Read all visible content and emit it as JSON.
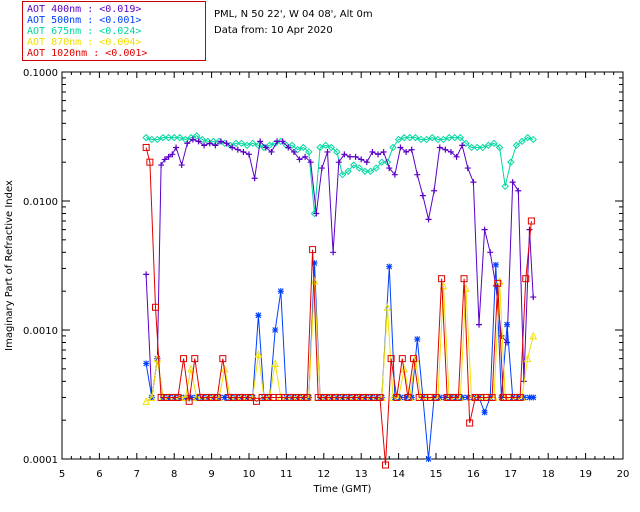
{
  "legend": {
    "items": [
      {
        "label": "AOT  400nm : <0.019>",
        "color": "#5b00c8"
      },
      {
        "label": "AOT  500nm : <0.001>",
        "color": "#0040ff"
      },
      {
        "label": "AOT  675nm : <0.024>",
        "color": "#00d8a0"
      },
      {
        "label": "AOT  870nm : <0.004>",
        "color": "#f0e000"
      },
      {
        "label": "AOT 1020nm : <0.001>",
        "color": "#e00000"
      }
    ]
  },
  "site": {
    "location": "PML, N 50 22', W 04 08', Alt 0m",
    "date": "Data from: 10 Apr 2020"
  },
  "chart_data": {
    "type": "line",
    "title": "",
    "xlabel": "Time (GMT)",
    "ylabel": "Imaginary Part of Refractive Index",
    "xlim": [
      5,
      20
    ],
    "ylim": [
      0.0001,
      0.1
    ],
    "yscale": "log",
    "xticks": [
      "5",
      "6",
      "7",
      "8",
      "9",
      "10",
      "11",
      "12",
      "13",
      "14",
      "15",
      "16",
      "17",
      "18",
      "19",
      "20"
    ],
    "yticks": [
      "0.0001",
      "0.0010",
      "0.0100",
      "0.1000"
    ],
    "series": [
      {
        "name": "AOT 400nm",
        "color": "#5b00c8",
        "marker": "plus",
        "x": [
          7.25,
          7.4,
          7.55,
          7.65,
          7.75,
          7.85,
          7.95,
          8.05,
          8.2,
          8.35,
          8.5,
          8.65,
          8.8,
          8.95,
          9.1,
          9.25,
          9.4,
          9.55,
          9.7,
          9.85,
          10.0,
          10.15,
          10.3,
          10.45,
          10.6,
          10.75,
          10.9,
          11.05,
          11.2,
          11.35,
          11.5,
          11.65,
          11.8,
          11.95,
          12.1,
          12.25,
          12.4,
          12.55,
          12.7,
          12.85,
          13.0,
          13.15,
          13.3,
          13.45,
          13.6,
          13.75,
          13.9,
          14.05,
          14.2,
          14.35,
          14.5,
          14.65,
          14.8,
          14.95,
          15.1,
          15.25,
          15.4,
          15.55,
          15.7,
          15.85,
          16.0,
          16.15,
          16.3,
          16.45,
          16.6,
          16.75,
          16.9,
          17.05,
          17.2,
          17.35,
          17.5,
          17.6
        ],
        "y": [
          0.0027,
          0.0003,
          0.0006,
          0.019,
          0.021,
          0.022,
          0.023,
          0.026,
          0.019,
          0.028,
          0.03,
          0.029,
          0.027,
          0.028,
          0.027,
          0.029,
          0.028,
          0.026,
          0.025,
          0.024,
          0.023,
          0.015,
          0.029,
          0.026,
          0.024,
          0.029,
          0.029,
          0.026,
          0.024,
          0.021,
          0.022,
          0.02,
          0.008,
          0.018,
          0.024,
          0.004,
          0.02,
          0.023,
          0.022,
          0.022,
          0.021,
          0.02,
          0.024,
          0.023,
          0.024,
          0.018,
          0.016,
          0.026,
          0.024,
          0.025,
          0.016,
          0.011,
          0.0072,
          0.012,
          0.026,
          0.025,
          0.024,
          0.022,
          0.027,
          0.018,
          0.014,
          0.0011,
          0.006,
          0.004,
          0.0022,
          0.0009,
          0.0008,
          0.014,
          0.012,
          0.0004,
          0.006,
          0.0018
        ]
      },
      {
        "name": "AOT 500nm",
        "color": "#0040ff",
        "marker": "star",
        "x": [
          7.25,
          7.4,
          7.55,
          7.7,
          7.85,
          8.0,
          8.15,
          8.3,
          8.45,
          8.6,
          8.75,
          8.9,
          9.05,
          9.2,
          9.35,
          9.5,
          9.65,
          9.8,
          9.95,
          10.1,
          10.25,
          10.4,
          10.55,
          10.7,
          10.85,
          11.0,
          11.15,
          11.3,
          11.45,
          11.6,
          11.75,
          11.9,
          12.05,
          12.2,
          12.35,
          12.5,
          12.65,
          12.8,
          12.95,
          13.1,
          13.25,
          13.4,
          13.55,
          13.75,
          13.9,
          14.05,
          14.2,
          14.35,
          14.5,
          14.65,
          14.8,
          14.95,
          15.1,
          15.25,
          15.4,
          15.55,
          15.7,
          15.85,
          16.0,
          16.15,
          16.3,
          16.45,
          16.6,
          16.75,
          16.9,
          17.05,
          17.2,
          17.35,
          17.5,
          17.6
        ],
        "y": [
          0.00055,
          0.0003,
          0.0006,
          0.0003,
          0.0003,
          0.0003,
          0.0003,
          0.0003,
          0.0003,
          0.0003,
          0.0003,
          0.0003,
          0.0003,
          0.0003,
          0.0003,
          0.0003,
          0.0003,
          0.0003,
          0.0003,
          0.0003,
          0.0013,
          0.0003,
          0.0003,
          0.001,
          0.002,
          0.0003,
          0.0003,
          0.0003,
          0.0003,
          0.0003,
          0.0033,
          0.0003,
          0.0003,
          0.0003,
          0.0003,
          0.0003,
          0.0003,
          0.0003,
          0.0003,
          0.0003,
          0.0003,
          0.0003,
          0.0003,
          0.0031,
          0.0003,
          0.0003,
          0.0003,
          0.0003,
          0.00085,
          0.0003,
          0.0001,
          0.0003,
          0.0003,
          0.0003,
          0.0003,
          0.0003,
          0.0003,
          0.0003,
          0.0003,
          0.0003,
          0.00023,
          0.0003,
          0.0032,
          0.0003,
          0.0011,
          0.0003,
          0.0003,
          0.0003,
          0.0003,
          0.0003
        ]
      },
      {
        "name": "AOT 675nm",
        "color": "#00d8a0",
        "marker": "diamond",
        "x": [
          7.25,
          7.4,
          7.55,
          7.7,
          7.85,
          8.0,
          8.15,
          8.3,
          8.45,
          8.6,
          8.75,
          8.9,
          9.05,
          9.2,
          9.35,
          9.5,
          9.65,
          9.8,
          9.95,
          10.1,
          10.25,
          10.4,
          10.55,
          10.7,
          10.85,
          11.0,
          11.15,
          11.3,
          11.45,
          11.6,
          11.75,
          11.9,
          12.05,
          12.2,
          12.35,
          12.5,
          12.65,
          12.8,
          12.95,
          13.1,
          13.25,
          13.4,
          13.55,
          13.7,
          13.85,
          14.0,
          14.15,
          14.3,
          14.45,
          14.6,
          14.75,
          14.9,
          15.05,
          15.2,
          15.35,
          15.5,
          15.65,
          15.8,
          15.95,
          16.1,
          16.25,
          16.4,
          16.55,
          16.7,
          16.85,
          17.0,
          17.15,
          17.3,
          17.45,
          17.6
        ],
        "y": [
          0.031,
          0.03,
          0.03,
          0.031,
          0.031,
          0.031,
          0.031,
          0.03,
          0.031,
          0.032,
          0.03,
          0.029,
          0.029,
          0.029,
          0.028,
          0.027,
          0.028,
          0.028,
          0.027,
          0.028,
          0.027,
          0.026,
          0.027,
          0.028,
          0.029,
          0.027,
          0.027,
          0.025,
          0.026,
          0.024,
          0.008,
          0.026,
          0.027,
          0.026,
          0.024,
          0.016,
          0.017,
          0.019,
          0.018,
          0.017,
          0.017,
          0.018,
          0.02,
          0.02,
          0.026,
          0.03,
          0.031,
          0.031,
          0.031,
          0.03,
          0.03,
          0.031,
          0.03,
          0.03,
          0.031,
          0.031,
          0.031,
          0.028,
          0.026,
          0.026,
          0.026,
          0.027,
          0.028,
          0.026,
          0.013,
          0.02,
          0.027,
          0.029,
          0.031,
          0.03
        ]
      },
      {
        "name": "AOT 870nm",
        "color": "#f0e000",
        "marker": "triangle",
        "x": [
          7.25,
          7.4,
          7.55,
          7.7,
          7.85,
          8.0,
          8.15,
          8.3,
          8.45,
          8.6,
          8.75,
          8.9,
          9.05,
          9.2,
          9.35,
          9.5,
          9.65,
          9.8,
          9.95,
          10.1,
          10.25,
          10.4,
          10.55,
          10.7,
          10.85,
          11.0,
          11.15,
          11.3,
          11.45,
          11.6,
          11.75,
          11.9,
          12.05,
          12.2,
          12.35,
          12.5,
          12.65,
          12.8,
          12.95,
          13.1,
          13.25,
          13.4,
          13.55,
          13.7,
          13.85,
          14.0,
          14.15,
          14.3,
          14.45,
          14.6,
          14.75,
          14.9,
          15.05,
          15.2,
          15.35,
          15.5,
          15.65,
          15.8,
          15.95,
          16.1,
          16.25,
          16.4,
          16.55,
          16.7,
          16.85,
          17.0,
          17.15,
          17.3,
          17.45,
          17.6
        ],
        "y": [
          0.00028,
          0.0003,
          0.0006,
          0.0003,
          0.0003,
          0.0003,
          0.0003,
          0.0003,
          0.0005,
          0.0003,
          0.0003,
          0.0003,
          0.0003,
          0.0003,
          0.0005,
          0.0003,
          0.0003,
          0.0003,
          0.0003,
          0.0003,
          0.00065,
          0.0003,
          0.0003,
          0.00055,
          0.0003,
          0.0003,
          0.0003,
          0.0003,
          0.0003,
          0.0003,
          0.0024,
          0.0003,
          0.0003,
          0.0003,
          0.0003,
          0.0003,
          0.0003,
          0.0003,
          0.0003,
          0.0003,
          0.0003,
          0.0003,
          0.0003,
          0.0015,
          0.0003,
          0.0003,
          0.0005,
          0.0003,
          0.0006,
          0.0003,
          0.0003,
          0.0003,
          0.0003,
          0.0022,
          0.0003,
          0.0003,
          0.0003,
          0.0021,
          0.0003,
          0.0003,
          0.0003,
          0.0003,
          0.0003,
          0.0024,
          0.0003,
          0.0003,
          0.0003,
          0.0003,
          0.0006,
          0.0009
        ]
      },
      {
        "name": "AOT 1020nm",
        "color": "#e00000",
        "marker": "square",
        "x": [
          7.25,
          7.35,
          7.5,
          7.65,
          7.8,
          7.95,
          8.1,
          8.25,
          8.4,
          8.55,
          8.7,
          8.85,
          9.0,
          9.15,
          9.3,
          9.45,
          9.6,
          9.75,
          9.9,
          10.05,
          10.2,
          10.35,
          10.5,
          10.65,
          10.8,
          10.95,
          11.1,
          11.25,
          11.4,
          11.55,
          11.7,
          11.85,
          12.0,
          12.15,
          12.3,
          12.45,
          12.6,
          12.75,
          12.9,
          13.05,
          13.2,
          13.35,
          13.5,
          13.65,
          13.8,
          13.95,
          14.1,
          14.25,
          14.4,
          14.55,
          14.7,
          14.85,
          15.0,
          15.15,
          15.3,
          15.45,
          15.6,
          15.75,
          15.9,
          16.05,
          16.2,
          16.35,
          16.5,
          16.65,
          16.8,
          16.95,
          17.1,
          17.25,
          17.4,
          17.55
        ],
        "y": [
          0.026,
          0.02,
          0.0015,
          0.0003,
          0.0003,
          0.0003,
          0.0003,
          0.0006,
          0.00028,
          0.0006,
          0.0003,
          0.0003,
          0.0003,
          0.0003,
          0.0006,
          0.0003,
          0.0003,
          0.0003,
          0.0003,
          0.0003,
          0.00028,
          0.0003,
          0.0003,
          0.0003,
          0.0003,
          0.0003,
          0.0003,
          0.0003,
          0.0003,
          0.0003,
          0.0042,
          0.0003,
          0.0003,
          0.0003,
          0.0003,
          0.0003,
          0.0003,
          0.0003,
          0.0003,
          0.0003,
          0.0003,
          0.0003,
          0.0003,
          8e-05,
          0.0006,
          0.0003,
          0.0006,
          0.0003,
          0.0006,
          0.0003,
          0.0003,
          0.0003,
          0.0003,
          0.0025,
          0.0003,
          0.0003,
          0.0003,
          0.0025,
          0.00019,
          0.0003,
          0.0003,
          0.0003,
          0.0003,
          0.0023,
          0.0003,
          0.0003,
          0.0003,
          0.0003,
          0.0025,
          0.007
        ]
      }
    ]
  }
}
